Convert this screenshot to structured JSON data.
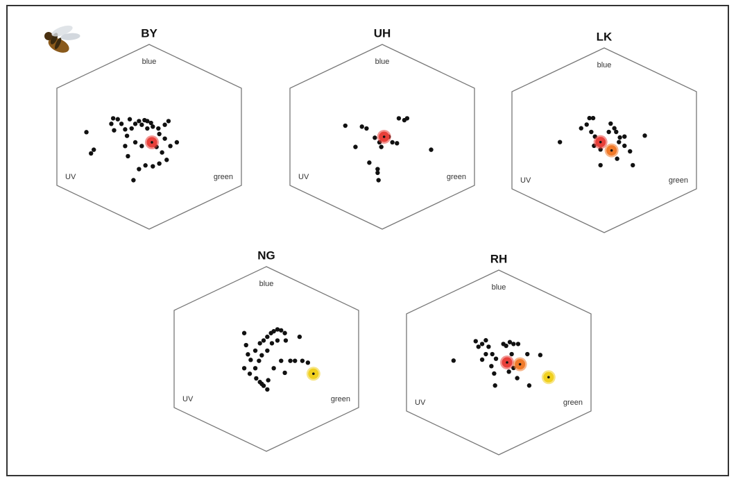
{
  "chart_data": [
    {
      "type": "scatter",
      "title": "BY",
      "labels": {
        "top": "blue",
        "left": "UV",
        "right": "green"
      },
      "xlim": [
        -1,
        1
      ],
      "ylim": [
        -1,
        1
      ],
      "series": [
        {
          "color": "#111111",
          "x": [
            -0.68,
            -0.6,
            -0.63,
            -0.39,
            -0.41,
            -0.34,
            -0.3,
            -0.38,
            -0.26,
            -0.24,
            -0.19,
            -0.21,
            -0.15,
            -0.11,
            -0.08,
            -0.05,
            -0.02,
            0.02,
            -0.02,
            0.04,
            0.1,
            0.17,
            0.21,
            0.11,
            0.17,
            0.23,
            0.3,
            -0.26,
            -0.23,
            -0.15,
            -0.08,
            0.08,
            0.14,
            0.19,
            0.11,
            0.04,
            -0.04,
            -0.11,
            -0.17
          ],
          "y": [
            0.05,
            -0.14,
            -0.18,
            0.2,
            0.14,
            0.19,
            0.14,
            0.07,
            0.08,
            0.01,
            0.09,
            0.19,
            0.14,
            0.17,
            0.13,
            0.18,
            0.17,
            0.15,
            0.09,
            0.11,
            0.09,
            0.13,
            0.17,
            0.03,
            -0.02,
            -0.1,
            -0.06,
            -0.1,
            -0.21,
            -0.06,
            -0.1,
            -0.11,
            -0.17,
            -0.25,
            -0.29,
            -0.32,
            -0.31,
            -0.35,
            -0.47
          ]
        },
        {
          "color": "#e8403a",
          "highlight": true,
          "x": [
            0.03
          ],
          "y": [
            -0.06
          ]
        }
      ]
    },
    {
      "type": "scatter",
      "title": "UH",
      "labels": {
        "top": "blue",
        "left": "UV",
        "right": "green"
      },
      "xlim": [
        -1,
        1
      ],
      "ylim": [
        -1,
        1
      ],
      "series": [
        {
          "color": "#111111",
          "x": [
            -0.4,
            -0.22,
            -0.17,
            -0.29,
            -0.08,
            -0.03,
            -0.01,
            0.07,
            0.11,
            0.16,
            0.18,
            0.24,
            0.27,
            0.53,
            -0.14,
            -0.05,
            -0.05,
            -0.04
          ],
          "y": [
            0.12,
            0.11,
            0.09,
            -0.11,
            -0.01,
            -0.06,
            -0.11,
            0.0,
            -0.06,
            -0.07,
            0.2,
            0.18,
            0.2,
            -0.14,
            -0.28,
            -0.35,
            -0.39,
            -0.47
          ]
        },
        {
          "color": "#e8403a",
          "highlight": true,
          "x": [
            0.02
          ],
          "y": [
            0.0
          ]
        }
      ]
    },
    {
      "type": "scatter",
      "title": "LK",
      "labels": {
        "top": "blue",
        "left": "UV",
        "right": "green"
      },
      "xlim": [
        -1,
        1
      ],
      "ylim": [
        -1,
        1
      ],
      "series": [
        {
          "color": "#111111",
          "x": [
            -0.48,
            -0.25,
            -0.16,
            -0.12,
            -0.19,
            -0.14,
            -0.1,
            -0.07,
            -0.11,
            -0.04,
            0.07,
            0.11,
            0.05,
            0.13,
            0.17,
            0.22,
            0.16,
            0.22,
            0.28,
            0.44,
            -0.04,
            0.14,
            0.31
          ],
          "y": [
            -0.02,
            0.13,
            0.24,
            0.24,
            0.17,
            0.09,
            0.04,
            -0.02,
            -0.06,
            -0.1,
            0.18,
            0.13,
            0.09,
            0.09,
            0.03,
            0.04,
            -0.02,
            -0.06,
            -0.12,
            0.05,
            -0.27,
            -0.2,
            -0.27
          ]
        },
        {
          "color": "#e8403a",
          "highlight": true,
          "x": [
            -0.04
          ],
          "y": [
            -0.02
          ]
        },
        {
          "color": "#f07a2a",
          "highlight": true,
          "x": [
            0.08
          ],
          "y": [
            -0.11
          ]
        }
      ]
    },
    {
      "type": "scatter",
      "title": "NG",
      "labels": {
        "top": "blue",
        "left": "UV",
        "right": "green"
      },
      "xlim": [
        -1,
        1
      ],
      "ylim": [
        -1,
        1
      ],
      "series": [
        {
          "color": "#111111",
          "x": [
            -0.24,
            -0.22,
            -0.2,
            -0.24,
            -0.17,
            -0.12,
            -0.07,
            -0.03,
            0.01,
            0.05,
            0.08,
            0.12,
            0.16,
            0.2,
            0.21,
            0.12,
            0.06,
            0.01,
            -0.05,
            -0.08,
            -0.12,
            -0.11,
            -0.07,
            -0.03,
            0.01,
            -0.05,
            0.02,
            0.08,
            0.16,
            0.2,
            0.26,
            0.31,
            0.36,
            0.39,
            0.45,
            -0.18
          ],
          "y": [
            0.28,
            0.15,
            0.05,
            -0.1,
            -0.01,
            0.09,
            0.17,
            0.2,
            0.24,
            0.28,
            0.3,
            0.32,
            0.31,
            0.28,
            0.2,
            0.2,
            0.17,
            0.09,
            0.04,
            -0.02,
            -0.1,
            -0.21,
            -0.25,
            -0.29,
            -0.33,
            -0.27,
            -0.23,
            -0.1,
            -0.02,
            -0.15,
            -0.02,
            -0.02,
            0.24,
            -0.02,
            -0.04,
            -0.16
          ]
        },
        {
          "color": "#f0d020",
          "highlight": true,
          "x": [
            0.51
          ],
          "y": [
            -0.16
          ]
        }
      ]
    },
    {
      "type": "scatter",
      "title": "RH",
      "labels": {
        "top": "blue",
        "left": "UV",
        "right": "green"
      },
      "xlim": [
        -1,
        1
      ],
      "ylim": [
        -1,
        1
      ],
      "series": [
        {
          "color": "#111111",
          "x": [
            -0.49,
            -0.25,
            -0.22,
            -0.18,
            -0.14,
            -0.11,
            -0.14,
            -0.18,
            -0.07,
            -0.03,
            -0.08,
            -0.05,
            0.05,
            0.08,
            0.12,
            0.16,
            0.21,
            0.14,
            0.11,
            0.16,
            0.31,
            0.45,
            0.2,
            0.33,
            -0.04
          ],
          "y": [
            0.02,
            0.23,
            0.17,
            0.2,
            0.24,
            0.17,
            0.09,
            0.03,
            0.09,
            0.04,
            -0.04,
            -0.12,
            0.2,
            0.18,
            0.22,
            0.2,
            0.2,
            0.09,
            -0.1,
            -0.06,
            0.09,
            0.08,
            -0.17,
            -0.25,
            -0.25
          ]
        },
        {
          "color": "#e8403a",
          "highlight": true,
          "x": [
            0.09
          ],
          "y": [
            0.0
          ]
        },
        {
          "color": "#f07a2a",
          "highlight": true,
          "x": [
            0.23
          ],
          "y": [
            -0.02
          ]
        },
        {
          "color": "#f0d020",
          "highlight": true,
          "x": [
            0.54
          ],
          "y": [
            -0.16
          ]
        }
      ]
    }
  ]
}
